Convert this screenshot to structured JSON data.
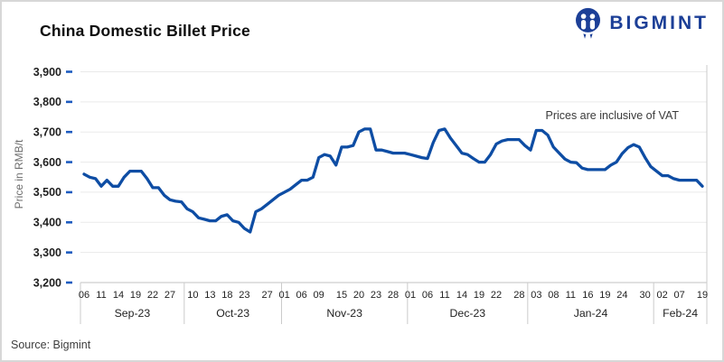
{
  "header": {
    "title": "China Domestic Billet Price",
    "logo_text": "BIGMINT",
    "logo_color": "#1c3f97"
  },
  "annotation": "Prices are inclusive of VAT",
  "source": "Source: Bigmint",
  "chart_data": {
    "type": "line",
    "title": "China Domestic Billet Price",
    "ylabel": "Price in RMB/t",
    "ylim": [
      3200,
      3900
    ],
    "ytick_step": 100,
    "grid": "horizontal",
    "legend": "none",
    "line_color": "#0e4da4",
    "tick_color": "#1d5bbf",
    "months": [
      {
        "label": "Sep-23",
        "tick_days": [
          "06",
          "11",
          "14",
          "19",
          "22",
          "27"
        ]
      },
      {
        "label": "Oct-23",
        "tick_days": [
          "10",
          "13",
          "18",
          "23",
          "27"
        ]
      },
      {
        "label": "Nov-23",
        "tick_days": [
          "01",
          "06",
          "09",
          "15",
          "20",
          "23",
          "28"
        ]
      },
      {
        "label": "Dec-23",
        "tick_days": [
          "01",
          "06",
          "11",
          "14",
          "19",
          "22",
          "28"
        ]
      },
      {
        "label": "Jan-24",
        "tick_days": [
          "03",
          "08",
          "11",
          "16",
          "19",
          "24",
          "30"
        ]
      },
      {
        "label": "Feb-24",
        "tick_days": [
          "02",
          "07",
          "19"
        ]
      }
    ],
    "points": [
      [
        0,
        "06",
        3560
      ],
      [
        0,
        "07",
        3550
      ],
      [
        0,
        "08",
        3545
      ],
      [
        0,
        "11",
        3520
      ],
      [
        0,
        "12",
        3540
      ],
      [
        0,
        "13",
        3520
      ],
      [
        0,
        "14",
        3520
      ],
      [
        0,
        "15",
        3550
      ],
      [
        0,
        "18",
        3570
      ],
      [
        0,
        "19",
        3570
      ],
      [
        0,
        "20",
        3570
      ],
      [
        0,
        "21",
        3545
      ],
      [
        0,
        "22",
        3515
      ],
      [
        0,
        "25",
        3515
      ],
      [
        0,
        "26",
        3490
      ],
      [
        0,
        "27",
        3475
      ],
      [
        0,
        "28",
        3470
      ],
      [
        0,
        "29",
        3468
      ],
      [
        1,
        "09",
        3445
      ],
      [
        1,
        "10",
        3435
      ],
      [
        1,
        "11",
        3415
      ],
      [
        1,
        "12",
        3410
      ],
      [
        1,
        "13",
        3405
      ],
      [
        1,
        "16",
        3405
      ],
      [
        1,
        "17",
        3420
      ],
      [
        1,
        "18",
        3425
      ],
      [
        1,
        "19",
        3405
      ],
      [
        1,
        "20",
        3400
      ],
      [
        1,
        "23",
        3380
      ],
      [
        1,
        "24",
        3368
      ],
      [
        1,
        "25",
        3435
      ],
      [
        1,
        "26",
        3445
      ],
      [
        1,
        "27",
        3460
      ],
      [
        1,
        "30",
        3475
      ],
      [
        1,
        "31",
        3490
      ],
      [
        2,
        "01",
        3500
      ],
      [
        2,
        "02",
        3510
      ],
      [
        2,
        "03",
        3525
      ],
      [
        2,
        "06",
        3540
      ],
      [
        2,
        "07",
        3540
      ],
      [
        2,
        "08",
        3550
      ],
      [
        2,
        "09",
        3615
      ],
      [
        2,
        "10",
        3625
      ],
      [
        2,
        "13",
        3620
      ],
      [
        2,
        "14",
        3590
      ],
      [
        2,
        "15",
        3650
      ],
      [
        2,
        "16",
        3650
      ],
      [
        2,
        "17",
        3655
      ],
      [
        2,
        "20",
        3700
      ],
      [
        2,
        "21",
        3710
      ],
      [
        2,
        "22",
        3710
      ],
      [
        2,
        "23",
        3640
      ],
      [
        2,
        "24",
        3640
      ],
      [
        2,
        "27",
        3635
      ],
      [
        2,
        "28",
        3630
      ],
      [
        2,
        "29",
        3630
      ],
      [
        2,
        "30",
        3630
      ],
      [
        3,
        "01",
        3625
      ],
      [
        3,
        "04",
        3620
      ],
      [
        3,
        "05",
        3615
      ],
      [
        3,
        "06",
        3612
      ],
      [
        3,
        "07",
        3665
      ],
      [
        3,
        "08",
        3705
      ],
      [
        3,
        "11",
        3710
      ],
      [
        3,
        "12",
        3680
      ],
      [
        3,
        "13",
        3655
      ],
      [
        3,
        "14",
        3630
      ],
      [
        3,
        "15",
        3625
      ],
      [
        3,
        "18",
        3612
      ],
      [
        3,
        "19",
        3600
      ],
      [
        3,
        "20",
        3600
      ],
      [
        3,
        "21",
        3625
      ],
      [
        3,
        "22",
        3660
      ],
      [
        3,
        "25",
        3670
      ],
      [
        3,
        "26",
        3675
      ],
      [
        3,
        "27",
        3675
      ],
      [
        3,
        "28",
        3675
      ],
      [
        3,
        "29",
        3655
      ],
      [
        4,
        "02",
        3640
      ],
      [
        4,
        "03",
        3705
      ],
      [
        4,
        "04",
        3705
      ],
      [
        4,
        "05",
        3690
      ],
      [
        4,
        "08",
        3650
      ],
      [
        4,
        "09",
        3630
      ],
      [
        4,
        "10",
        3610
      ],
      [
        4,
        "11",
        3600
      ],
      [
        4,
        "12",
        3598
      ],
      [
        4,
        "15",
        3580
      ],
      [
        4,
        "16",
        3575
      ],
      [
        4,
        "17",
        3575
      ],
      [
        4,
        "18",
        3575
      ],
      [
        4,
        "19",
        3575
      ],
      [
        4,
        "22",
        3590
      ],
      [
        4,
        "23",
        3600
      ],
      [
        4,
        "24",
        3628
      ],
      [
        4,
        "25",
        3648
      ],
      [
        4,
        "26",
        3658
      ],
      [
        4,
        "29",
        3650
      ],
      [
        4,
        "30",
        3615
      ],
      [
        4,
        "31",
        3585
      ],
      [
        5,
        "01",
        3570
      ],
      [
        5,
        "02",
        3555
      ],
      [
        5,
        "05",
        3555
      ],
      [
        5,
        "06",
        3545
      ],
      [
        5,
        "07",
        3540
      ],
      [
        5,
        "08",
        3540
      ],
      [
        5,
        "09",
        3540
      ],
      [
        5,
        "18",
        3540
      ],
      [
        5,
        "19",
        3520
      ]
    ]
  }
}
